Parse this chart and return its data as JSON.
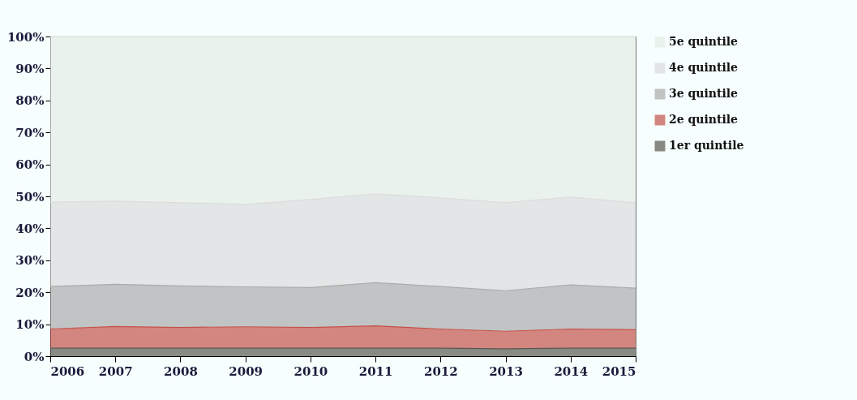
{
  "chart_data": {
    "type": "area",
    "stacked": true,
    "x": [
      2006,
      2007,
      2008,
      2009,
      2010,
      2011,
      2012,
      2013,
      2014,
      2015
    ],
    "xlim": [
      2006,
      2015
    ],
    "xticks": [
      2006,
      2007,
      2008,
      2009,
      2010,
      2011,
      2012,
      2013,
      2014,
      2015
    ],
    "ylim": [
      0,
      100
    ],
    "yticks": [
      {
        "value": 0,
        "label": "0%"
      },
      {
        "value": 10,
        "label": "10%"
      },
      {
        "value": 20,
        "label": "20%"
      },
      {
        "value": 30,
        "label": "30%"
      },
      {
        "value": 40,
        "label": "40%"
      },
      {
        "value": 50,
        "label": "50%"
      },
      {
        "value": 60,
        "label": "60%"
      },
      {
        "value": 70,
        "label": "70%"
      },
      {
        "value": 80,
        "label": "80%"
      },
      {
        "value": 90,
        "label": "90%"
      },
      {
        "value": 100,
        "label": "100%"
      }
    ],
    "legend": "right",
    "grid": false,
    "series": [
      {
        "name": "1er quintile",
        "color": "#5a5850",
        "values": [
          2.5,
          2.5,
          2.5,
          2.5,
          2.5,
          2.5,
          2.5,
          2.3,
          2.5,
          2.5
        ]
      },
      {
        "name": "2e quintile",
        "color": "#c5524a",
        "values": [
          6,
          6.8,
          6.5,
          6.7,
          6.5,
          7,
          6,
          5.5,
          6,
          5.8
        ]
      },
      {
        "name": "3e quintile",
        "color": "#ababab",
        "values": [
          13.3,
          13.2,
          13,
          12.5,
          12.5,
          13.5,
          13.3,
          12.7,
          13.8,
          13
        ]
      },
      {
        "name": "4e quintile",
        "color": "#dcdcdc",
        "values": [
          26.4,
          26,
          26,
          25.8,
          27.5,
          27.8,
          27.7,
          27.5,
          27.5,
          26.7
        ]
      },
      {
        "name": "5e quintile",
        "color": "#e6ede6",
        "values": [
          51.8,
          51.5,
          52,
          52.5,
          51,
          49.2,
          50.5,
          52,
          50.2,
          52
        ]
      }
    ]
  }
}
